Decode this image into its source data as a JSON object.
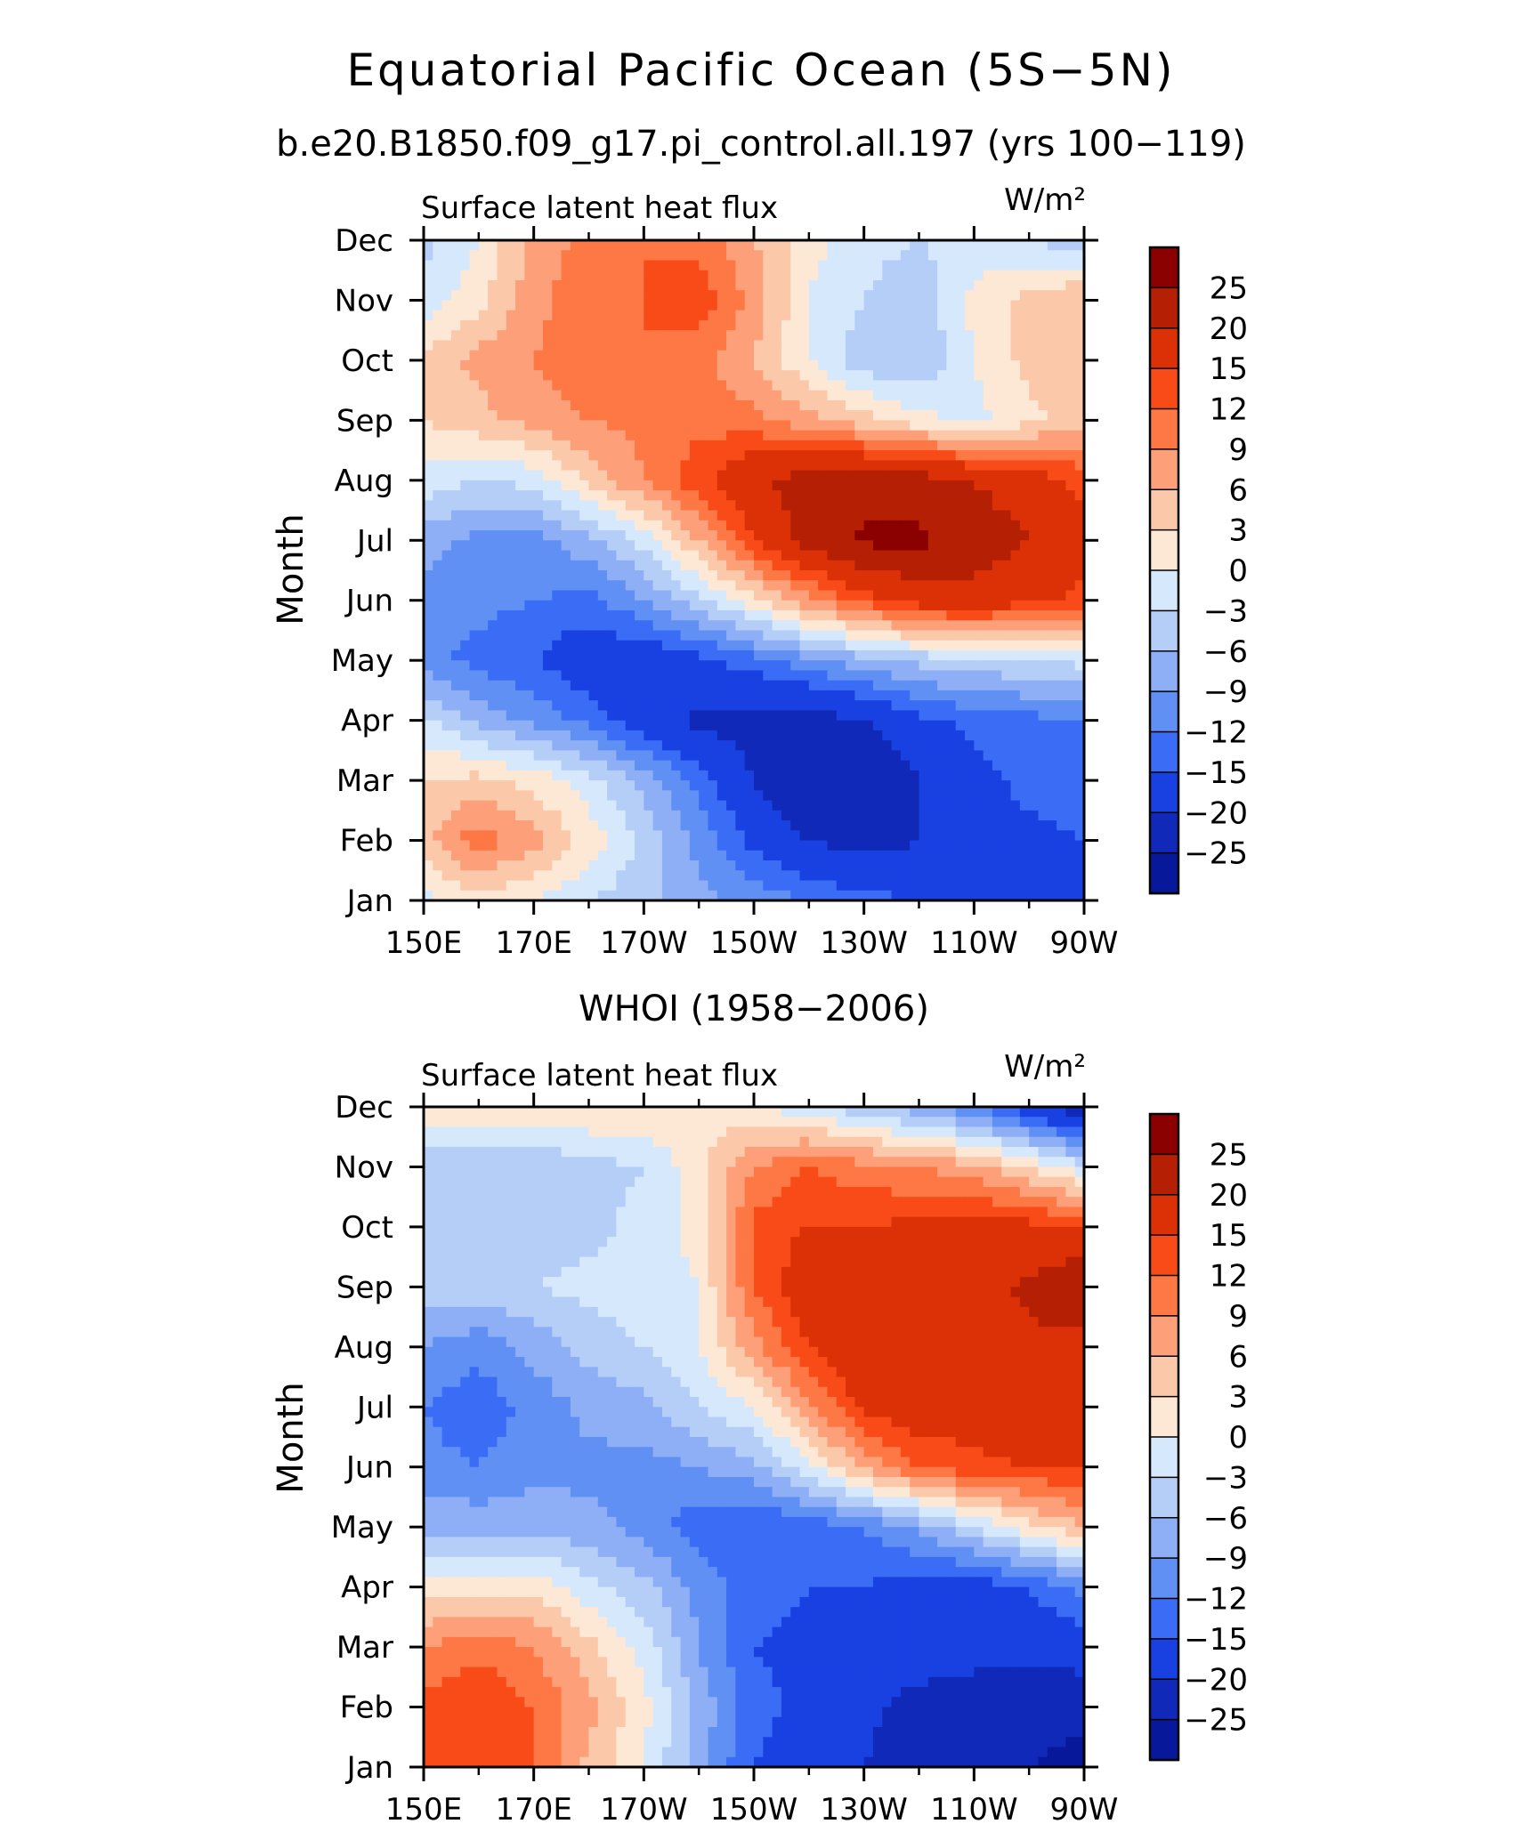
{
  "title": "Equatorial Pacific Ocean (5S−5N)",
  "subtitle": "b.e20.B1850.f09_g17.pi_control.all.197 (yrs 100−119)",
  "colorbar": {
    "labels": [
      "25",
      "20",
      "15",
      "12",
      "9",
      "6",
      "3",
      "0",
      "−3",
      "−6",
      "−9",
      "−12",
      "−15",
      "−20",
      "−25"
    ],
    "colors": [
      "#8b0000",
      "#b52005",
      "#dc3107",
      "#f84b18",
      "#fe7845",
      "#fda07a",
      "#fcc8aa",
      "#fde8d6",
      "#d6e8fb",
      "#b4cef8",
      "#8eaff6",
      "#6090f4",
      "#3a6cf5",
      "#1941e2",
      "#1029b8",
      "#08189a"
    ]
  },
  "chart_data": [
    {
      "type": "heatmap",
      "panel_title": "",
      "left_label": "Surface latent heat flux",
      "units": "W/m²",
      "ylabel": "Month",
      "x_tick_labels": [
        "150E",
        "170E",
        "170W",
        "150W",
        "130W",
        "110W",
        "90W"
      ],
      "y_tick_labels": [
        "Jan",
        "Feb",
        "Mar",
        "Apr",
        "May",
        "Jun",
        "Jul",
        "Aug",
        "Sep",
        "Oct",
        "Nov",
        "Dec"
      ],
      "x_deg_east": [
        150,
        160,
        170,
        180,
        190,
        200,
        210,
        220,
        230,
        240,
        250,
        260,
        270
      ],
      "levels": [
        -25,
        -20,
        -15,
        -12,
        -9,
        -6,
        -3,
        0,
        3,
        6,
        9,
        12,
        15,
        20,
        25
      ],
      "values": [
        [
          -1,
          2,
          0,
          -3,
          -5,
          -8,
          -10,
          -12,
          -14,
          -15,
          -16,
          -17,
          -15
        ],
        [
          5,
          11,
          7,
          2,
          -4,
          -10,
          -16,
          -20,
          -22,
          -20,
          -18,
          -16,
          -15
        ],
        [
          3,
          4,
          2,
          -2,
          -7,
          -13,
          -20,
          -25,
          -25,
          -20,
          -16,
          -14,
          -13
        ],
        [
          -2,
          -7,
          -10,
          -13,
          -18,
          -21,
          -22,
          -22,
          -20,
          -16,
          -14,
          -13,
          -12
        ],
        [
          -11,
          -13,
          -15,
          -18,
          -18,
          -16,
          -13,
          -10,
          -7,
          -5,
          -4,
          -3,
          -2
        ],
        [
          -10,
          -11,
          -12,
          -13,
          -9,
          -4,
          2,
          8,
          13,
          17,
          18,
          16,
          14
        ],
        [
          -8,
          -10,
          -10,
          -7,
          -2,
          6,
          15,
          22,
          26,
          26,
          23,
          20,
          16
        ],
        [
          -1,
          -3,
          -2,
          4,
          9,
          14,
          19,
          22,
          23,
          22,
          20,
          17,
          14
        ],
        [
          3,
          5,
          7,
          9,
          10,
          11,
          10,
          7,
          4,
          1,
          -1,
          2,
          5
        ],
        [
          4,
          7,
          9,
          11,
          12,
          10,
          6,
          0,
          -5,
          -6,
          0,
          4,
          6
        ],
        [
          -2,
          2,
          8,
          11,
          12,
          14,
          8,
          0,
          -3,
          -5,
          1,
          4,
          6
        ],
        [
          -4,
          0,
          7,
          10,
          12,
          11,
          6,
          1,
          -2,
          -3,
          -2,
          -3,
          -5
        ]
      ]
    },
    {
      "type": "heatmap",
      "panel_title": "WHOI (1958−2006)",
      "left_label": "Surface latent heat flux",
      "units": "W/m²",
      "ylabel": "Month",
      "x_tick_labels": [
        "150E",
        "170E",
        "170W",
        "150W",
        "130W",
        "110W",
        "90W"
      ],
      "y_tick_labels": [
        "Jan",
        "Feb",
        "Mar",
        "Apr",
        "May",
        "Jun",
        "Jul",
        "Aug",
        "Sep",
        "Oct",
        "Nov",
        "Dec"
      ],
      "x_deg_east": [
        150,
        160,
        170,
        180,
        190,
        200,
        210,
        220,
        230,
        240,
        250,
        260,
        270
      ],
      "levels": [
        -25,
        -20,
        -15,
        -12,
        -9,
        -6,
        -3,
        0,
        3,
        6,
        9,
        12,
        15,
        20,
        25
      ],
      "values": [
        [
          13,
          14,
          12,
          5,
          0,
          -8,
          -15,
          -17,
          -20,
          -22,
          -24,
          -25,
          -26
        ],
        [
          13,
          15,
          12,
          7,
          1,
          -7,
          -14,
          -16,
          -19,
          -22,
          -23,
          -24,
          -24
        ],
        [
          9,
          11,
          9,
          4,
          -1,
          -9,
          -15,
          -16,
          -17,
          -17,
          -18,
          -18,
          -17
        ],
        [
          1,
          2,
          2,
          -2,
          -5,
          -10,
          -14,
          -15,
          -15,
          -17,
          -17,
          -15,
          -11
        ],
        [
          -7,
          -7,
          -7,
          -8,
          -10,
          -14,
          -15,
          -14,
          -12,
          -8,
          -3,
          2,
          6
        ],
        [
          -11,
          -12,
          -10,
          -10,
          -10,
          -9,
          -7,
          -1,
          7,
          12,
          14,
          15,
          15
        ],
        [
          -12,
          -14,
          -11,
          -8,
          -7,
          -3,
          0,
          8,
          16,
          18,
          17,
          19,
          17
        ],
        [
          -9,
          -11,
          -8,
          -5,
          -3,
          0,
          8,
          15,
          19,
          16,
          18,
          19,
          18
        ],
        [
          -5,
          -4,
          -3,
          -2,
          -1,
          0,
          12,
          18,
          18,
          16,
          18,
          21,
          25
        ],
        [
          -6,
          -3,
          -5,
          -4,
          -2,
          1,
          13,
          15,
          15,
          16,
          17,
          16,
          14
        ],
        [
          -6,
          -6,
          -6,
          -4,
          -3,
          2,
          9,
          12,
          10,
          9,
          7,
          3,
          -2
        ],
        [
          2,
          3,
          2,
          3,
          3,
          2,
          0,
          -2,
          -5,
          -8,
          -12,
          -18,
          -24
        ]
      ]
    }
  ]
}
